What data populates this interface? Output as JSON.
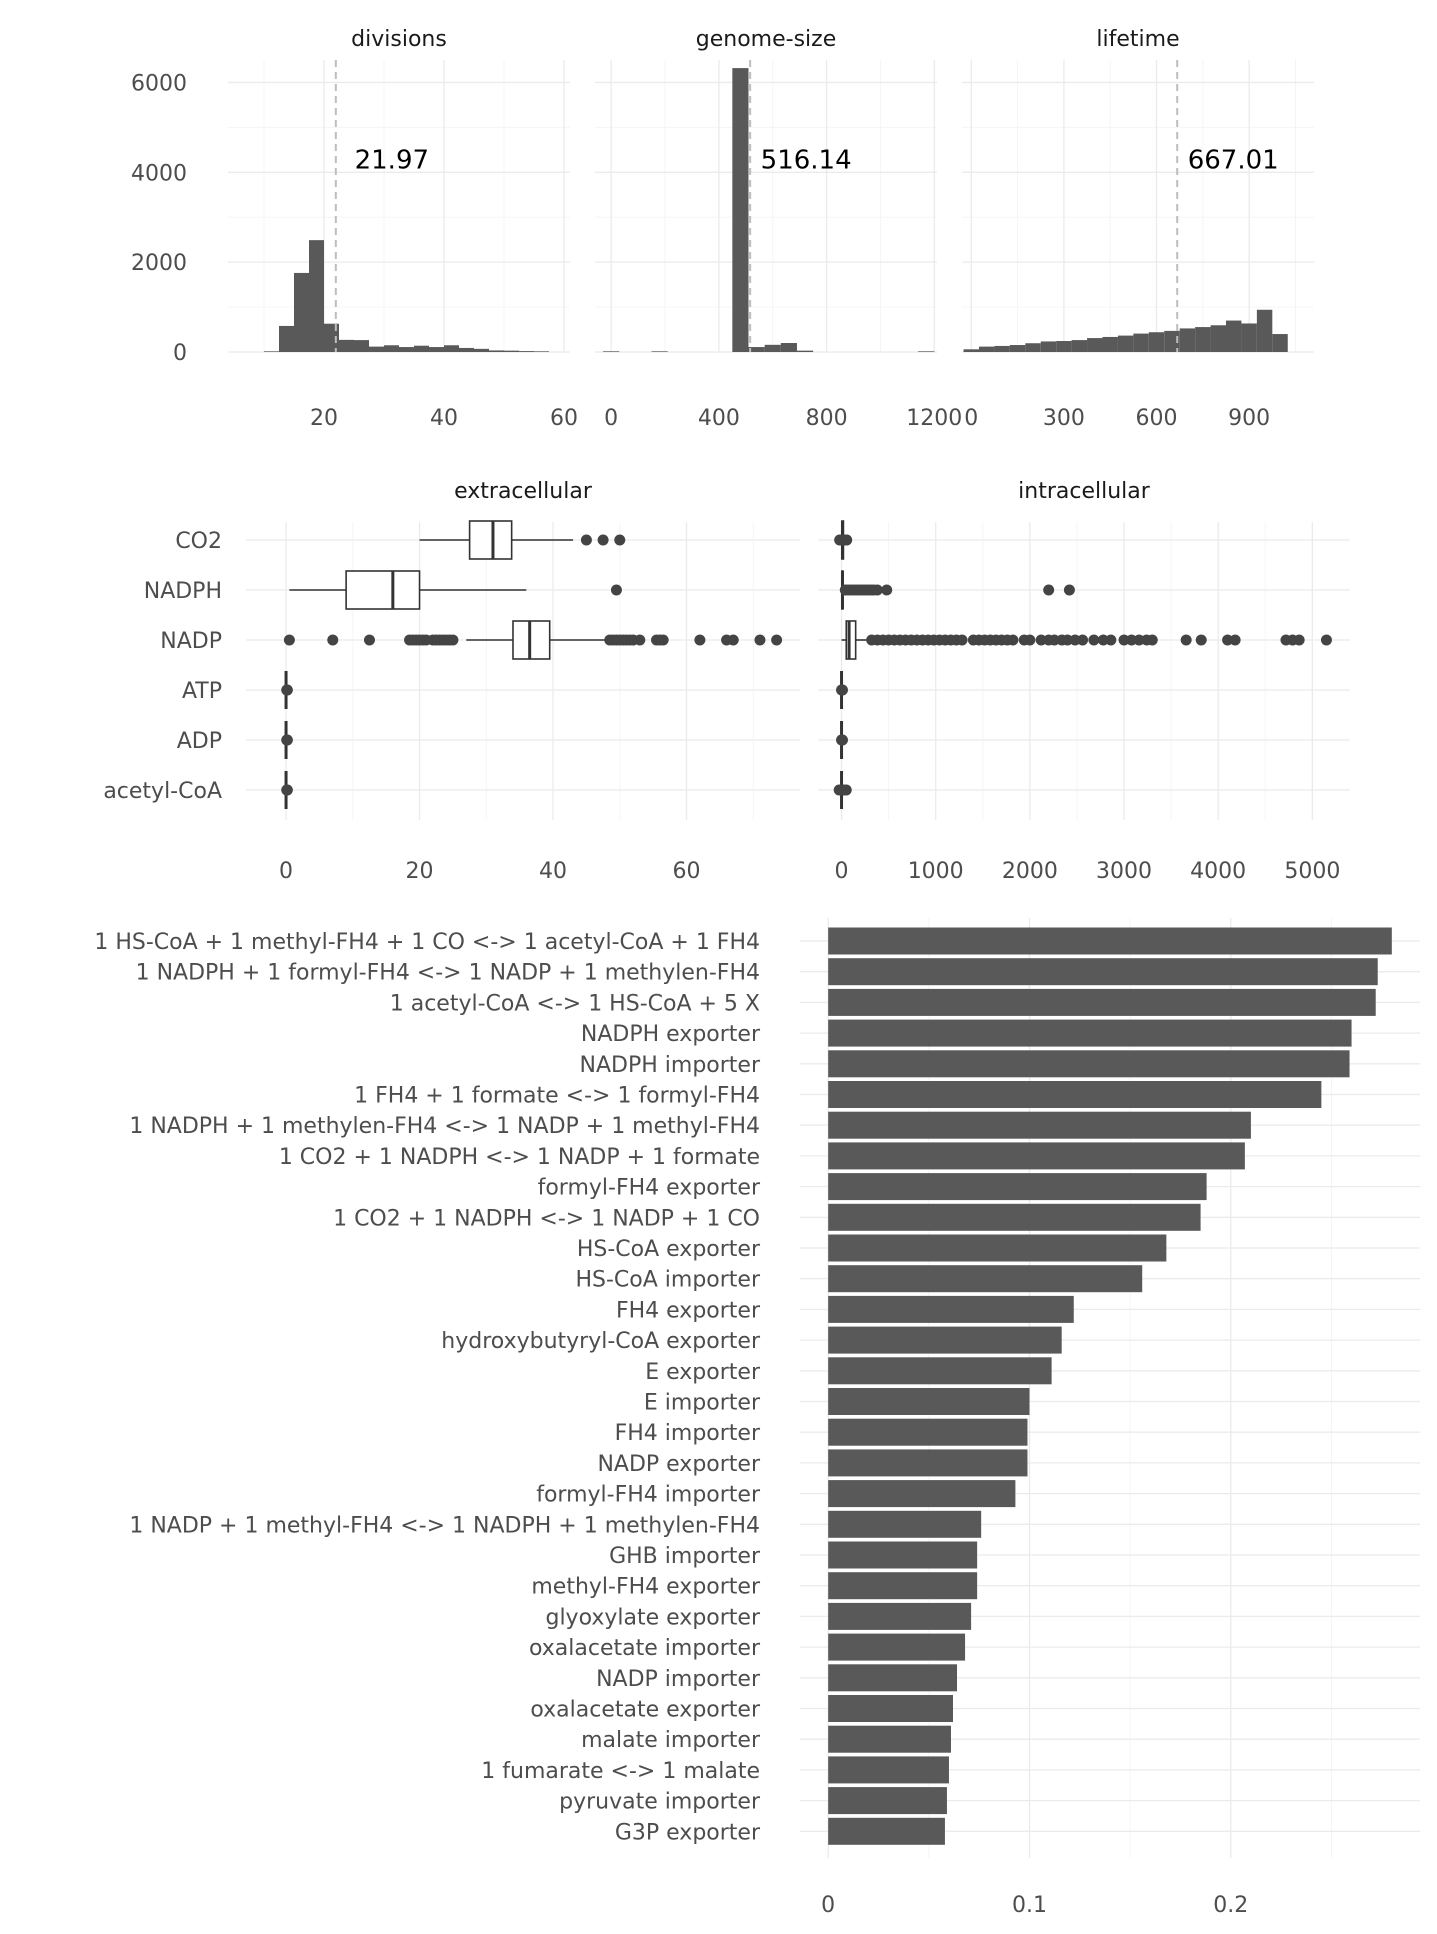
{
  "colors": {
    "bar": "#595959",
    "grid": "#ebebeb",
    "text": "#4d4d4d",
    "points": "#444444"
  },
  "chart_data": [
    {
      "type": "bar",
      "subtype": "histogram",
      "facets": [
        {
          "title": "divisions",
          "bin_width": 2.5,
          "bins": [
            {
              "x0": 10,
              "count": 15
            },
            {
              "x0": 12.5,
              "count": 580
            },
            {
              "x0": 15,
              "count": 1760
            },
            {
              "x0": 17.5,
              "count": 2490
            },
            {
              "x0": 20,
              "count": 630
            },
            {
              "x0": 22.5,
              "count": 270
            },
            {
              "x0": 25,
              "count": 265
            },
            {
              "x0": 27.5,
              "count": 120
            },
            {
              "x0": 30,
              "count": 150
            },
            {
              "x0": 32.5,
              "count": 110
            },
            {
              "x0": 35,
              "count": 140
            },
            {
              "x0": 37.5,
              "count": 110
            },
            {
              "x0": 40,
              "count": 150
            },
            {
              "x0": 42.5,
              "count": 90
            },
            {
              "x0": 45,
              "count": 70
            },
            {
              "x0": 47.5,
              "count": 35
            },
            {
              "x0": 50,
              "count": 30
            },
            {
              "x0": 52.5,
              "count": 20
            },
            {
              "x0": 55,
              "count": 15
            }
          ],
          "mean": 21.97,
          "mean_label": "21.97",
          "xlim": [
            4,
            61
          ],
          "xticks": [
            20,
            40,
            60
          ],
          "xtick_labels": [
            "20",
            "40",
            "60"
          ]
        },
        {
          "title": "genome-size",
          "bin_width": 60,
          "bins": [
            {
              "x0": -30,
              "count": 15
            },
            {
              "x0": 150,
              "count": 15
            },
            {
              "x0": 450,
              "count": 6320
            },
            {
              "x0": 510,
              "count": 110
            },
            {
              "x0": 570,
              "count": 160
            },
            {
              "x0": 630,
              "count": 200
            },
            {
              "x0": 690,
              "count": 30
            },
            {
              "x0": 1140,
              "count": 15
            }
          ],
          "mean": 516.14,
          "mean_label": "516.14",
          "xlim": [
            -60,
            1210
          ],
          "xticks": [
            0,
            400,
            800,
            1200
          ],
          "xtick_labels": [
            "0",
            "400",
            "800",
            "1200"
          ]
        },
        {
          "title": "lifetime",
          "bin_width": 50,
          "bins": [
            {
              "x0": -25,
              "count": 60
            },
            {
              "x0": 25,
              "count": 120
            },
            {
              "x0": 75,
              "count": 135
            },
            {
              "x0": 125,
              "count": 155
            },
            {
              "x0": 175,
              "count": 195
            },
            {
              "x0": 225,
              "count": 235
            },
            {
              "x0": 275,
              "count": 245
            },
            {
              "x0": 325,
              "count": 265
            },
            {
              "x0": 375,
              "count": 310
            },
            {
              "x0": 425,
              "count": 335
            },
            {
              "x0": 475,
              "count": 365
            },
            {
              "x0": 525,
              "count": 410
            },
            {
              "x0": 575,
              "count": 440
            },
            {
              "x0": 625,
              "count": 470
            },
            {
              "x0": 675,
              "count": 525
            },
            {
              "x0": 725,
              "count": 555
            },
            {
              "x0": 775,
              "count": 595
            },
            {
              "x0": 825,
              "count": 700
            },
            {
              "x0": 875,
              "count": 635
            },
            {
              "x0": 925,
              "count": 940
            },
            {
              "x0": 975,
              "count": 400
            }
          ],
          "mean": 667.01,
          "mean_label": "667.01",
          "xlim": [
            -30,
            1110
          ],
          "xticks": [
            0,
            300,
            600,
            900
          ],
          "xtick_labels": [
            "0",
            "300",
            "600",
            "900"
          ]
        }
      ],
      "ylim": [
        0,
        6500
      ],
      "yticks": [
        0,
        2000,
        4000,
        6000
      ],
      "ytick_labels": [
        "0",
        "2000",
        "4000",
        "6000"
      ],
      "grid": true
    },
    {
      "type": "boxplot",
      "categories": [
        "CO2",
        "NADPH",
        "NADP",
        "ATP",
        "ADP",
        "acetyl-CoA"
      ],
      "facets": [
        {
          "title": "extracellular",
          "xlim": [
            -6,
            77
          ],
          "xticks": [
            0,
            20,
            40,
            60
          ],
          "xtick_labels": [
            "0",
            "20",
            "40",
            "60"
          ],
          "boxes": [
            {
              "category": "CO2",
              "whisker_low": 20,
              "q1": 27.5,
              "median": 31,
              "q3": 33.8,
              "whisker_high": 43,
              "outliers": [
                45,
                47.5,
                50
              ]
            },
            {
              "category": "NADPH",
              "whisker_low": 0.5,
              "q1": 9,
              "median": 16,
              "q3": 20,
              "whisker_high": 36,
              "outliers": [
                49.5
              ]
            },
            {
              "category": "NADP",
              "whisker_low": 27,
              "q1": 34,
              "median": 36.5,
              "q3": 39.5,
              "whisker_high": 48,
              "outliers": [
                0.5,
                7,
                12.5,
                18.5,
                19,
                19.5,
                20,
                20.5,
                21,
                22,
                22.5,
                23,
                23.5,
                24,
                24.5,
                25,
                48.5,
                49,
                49.5,
                50,
                50.5,
                51,
                51.5,
                52,
                53,
                55.5,
                56,
                56.5,
                62,
                66,
                67,
                71,
                73.5
              ]
            },
            {
              "category": "ATP",
              "whisker_low": 0,
              "q1": 0,
              "median": 0,
              "q3": 0,
              "whisker_high": 0,
              "outliers": [
                0.1,
                0.2
              ]
            },
            {
              "category": "ADP",
              "whisker_low": 0,
              "q1": 0,
              "median": 0,
              "q3": 0,
              "whisker_high": 0,
              "outliers": [
                0.1,
                0.2
              ]
            },
            {
              "category": "acetyl-CoA",
              "whisker_low": 0,
              "q1": 0,
              "median": 0,
              "q3": 0,
              "whisker_high": 0,
              "outliers": [
                0.1,
                0.2
              ]
            }
          ]
        },
        {
          "title": "intracellular",
          "xlim": [
            -250,
            5400
          ],
          "xticks": [
            0,
            1000,
            2000,
            3000,
            4000,
            5000
          ],
          "xtick_labels": [
            "0",
            "1000",
            "2000",
            "3000",
            "4000",
            "5000"
          ],
          "boxes": [
            {
              "category": "CO2",
              "whisker_low": 0,
              "q1": 5,
              "median": 10,
              "q3": 20,
              "whisker_high": 40,
              "outliers": [
                -20,
                0,
                20,
                40,
                55
              ]
            },
            {
              "category": "NADPH",
              "whisker_low": 0,
              "q1": 5,
              "median": 10,
              "q3": 15,
              "whisker_high": 30,
              "outliers": [
                40,
                70,
                100,
                130,
                160,
                190,
                220,
                250,
                280,
                310,
                340,
                380,
                480,
                2200,
                2420
              ]
            },
            {
              "category": "NADP",
              "whisker_low": 0,
              "q1": 50,
              "median": 80,
              "q3": 150,
              "whisker_high": 300,
              "outliers": [
                320,
                380,
                440,
                500,
                560,
                620,
                680,
                740,
                800,
                860,
                920,
                980,
                1040,
                1100,
                1160,
                1220,
                1280,
                1400,
                1460,
                1520,
                1580,
                1640,
                1700,
                1760,
                1820,
                1940,
                2000,
                2120,
                2200,
                2260,
                2340,
                2400,
                2480,
                2560,
                2680,
                2780,
                2860,
                3000,
                3080,
                3160,
                3240,
                3300,
                3660,
                3820,
                4100,
                4180,
                4720,
                4790,
                4860,
                5150
              ]
            },
            {
              "category": "ATP",
              "whisker_low": 0,
              "q1": 0,
              "median": 0,
              "q3": 0,
              "whisker_high": 0,
              "outliers": [
                0,
                10
              ]
            },
            {
              "category": "ADP",
              "whisker_low": 0,
              "q1": 0,
              "median": 0,
              "q3": 0,
              "whisker_high": 0,
              "outliers": [
                0,
                10
              ]
            },
            {
              "category": "acetyl-CoA",
              "whisker_low": 0,
              "q1": 0,
              "median": 0,
              "q3": 0,
              "whisker_high": 0,
              "outliers": [
                -25,
                0,
                25,
                50
              ]
            }
          ]
        }
      ],
      "grid": true
    },
    {
      "type": "bar",
      "orientation": "horizontal",
      "categories": [
        "1 HS-CoA + 1 methyl-FH4 + 1 CO <-> 1 acetyl-CoA + 1 FH4",
        "1 NADPH + 1 formyl-FH4 <-> 1 NADP + 1 methylen-FH4",
        "1 acetyl-CoA <-> 1 HS-CoA + 5 X",
        "NADPH exporter",
        "NADPH importer",
        "1 FH4 + 1 formate <-> 1 formyl-FH4",
        "1 NADPH + 1 methylen-FH4 <-> 1 NADP + 1 methyl-FH4",
        "1 CO2 + 1 NADPH <-> 1 NADP + 1 formate",
        "formyl-FH4 exporter",
        "1 CO2 + 1 NADPH <-> 1 NADP + 1 CO",
        "HS-CoA exporter",
        "HS-CoA importer",
        "FH4 exporter",
        "hydroxybutyryl-CoA exporter",
        "E exporter",
        "E importer",
        "FH4 importer",
        "NADP exporter",
        "formyl-FH4 importer",
        "1 NADP + 1 methyl-FH4 <-> 1 NADPH + 1 methylen-FH4",
        "GHB importer",
        "methyl-FH4 exporter",
        "glyoxylate exporter",
        "oxalacetate importer",
        "NADP importer",
        "oxalacetate exporter",
        "malate importer",
        "1 fumarate <-> 1 malate",
        "pyruvate importer",
        "G3P exporter"
      ],
      "values": [
        0.28,
        0.273,
        0.272,
        0.26,
        0.259,
        0.245,
        0.21,
        0.207,
        0.188,
        0.185,
        0.168,
        0.156,
        0.122,
        0.116,
        0.111,
        0.1,
        0.099,
        0.099,
        0.093,
        0.076,
        0.074,
        0.074,
        0.071,
        0.068,
        0.064,
        0.062,
        0.061,
        0.06,
        0.059,
        0.058
      ],
      "xlim": [
        -0.014,
        0.294
      ],
      "xticks": [
        0,
        0.1,
        0.2
      ],
      "xtick_labels": [
        "0",
        "0.1",
        "0.2"
      ],
      "grid": true
    }
  ]
}
